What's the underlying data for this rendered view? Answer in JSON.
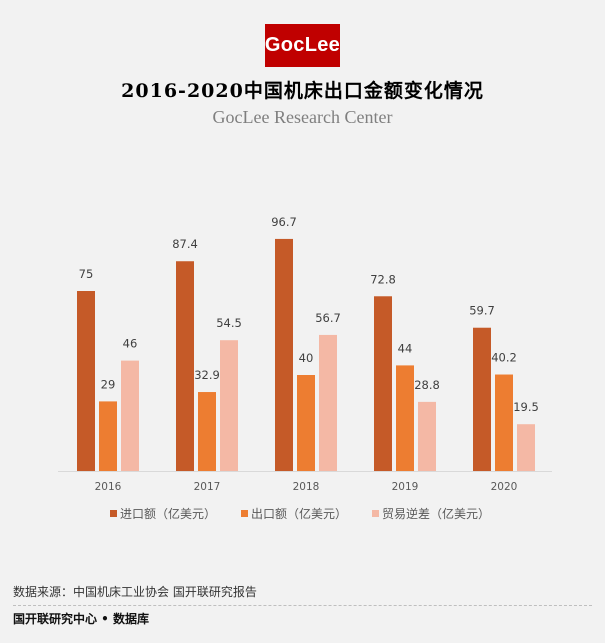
{
  "logo": {
    "text": "GocLee",
    "color": "#c00000"
  },
  "header": {
    "title": "2016-2020中国机床出口金额变化情况",
    "subtitle": "GocLee Research Center"
  },
  "chart_data": {
    "type": "bar",
    "title": "2016-2020中国机床出口金额变化情况",
    "xlabel": "",
    "ylabel": "",
    "categories": [
      "2016",
      "2017",
      "2018",
      "2019",
      "2020"
    ],
    "series": [
      {
        "name": "进口额（亿美元）",
        "color": "#c55a28",
        "values": [
          75,
          87.4,
          96.7,
          72.8,
          59.7
        ]
      },
      {
        "name": "出口额（亿美元）",
        "color": "#ed7d31",
        "values": [
          29,
          32.9,
          40,
          44,
          40.2
        ]
      },
      {
        "name": "贸易逆差（亿美元）",
        "color": "#f4b8a5",
        "values": [
          46,
          54.5,
          56.7,
          28.8,
          19.5
        ]
      }
    ],
    "ylim": [
      0,
      100
    ],
    "grid": false,
    "data_labels": true,
    "legend": "bottom"
  },
  "footer": {
    "source": "数据来源：中国机床工业协会 国开联研究报告",
    "brand": "国开联研究中心 • 数据库"
  }
}
